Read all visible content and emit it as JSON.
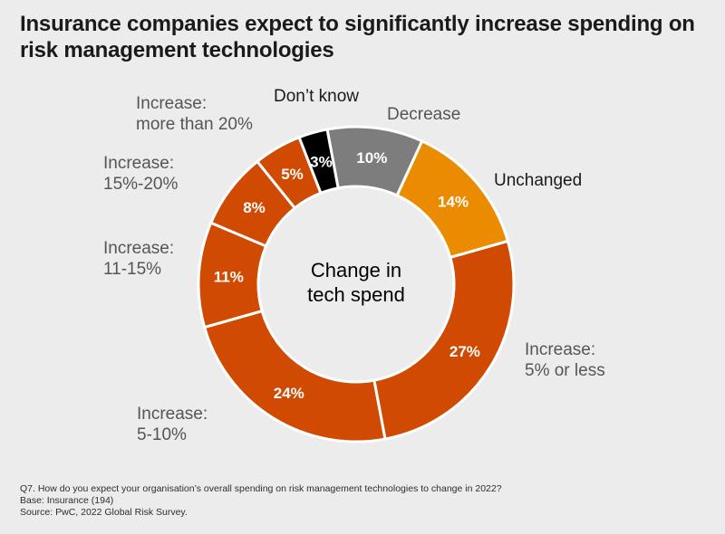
{
  "title": "Insurance companies expect to significantly increase spending on risk management technologies",
  "chart_data": {
    "type": "pie",
    "variant": "donut",
    "center_label": [
      "Change in",
      "tech spend"
    ],
    "slices": [
      {
        "name": "Decrease",
        "label_lines": [
          "Decrease"
        ],
        "value": 10,
        "display": "10%",
        "color": "#7d7d7d",
        "label_color": "#555555"
      },
      {
        "name": "Unchanged",
        "label_lines": [
          "Unchanged"
        ],
        "value": 14,
        "display": "14%",
        "color": "#eb8c00",
        "label_color": "#1a1a1a"
      },
      {
        "name": "Increase: 5% or less",
        "label_lines": [
          "Increase:",
          "5% or less"
        ],
        "value": 27,
        "display": "27%",
        "color": "#d04a02",
        "label_color": "#555555"
      },
      {
        "name": "Increase: 5-10%",
        "label_lines": [
          "Increase:",
          "5-10%"
        ],
        "value": 24,
        "display": "24%",
        "color": "#d04a02",
        "label_color": "#555555"
      },
      {
        "name": "Increase: 11-15%",
        "label_lines": [
          "Increase:",
          "11-15%"
        ],
        "value": 11,
        "display": "11%",
        "color": "#d04a02",
        "label_color": "#555555"
      },
      {
        "name": "Increase: 15%-20%",
        "label_lines": [
          "Increase:",
          "15%-20%"
        ],
        "value": 8,
        "display": "8%",
        "color": "#d04a02",
        "label_color": "#555555"
      },
      {
        "name": "Increase: more than 20%",
        "label_lines": [
          "Increase:",
          "more than 20%"
        ],
        "value": 5,
        "display": "5%",
        "color": "#d04a02",
        "label_color": "#555555"
      },
      {
        "name": "Don’t know",
        "label_lines": [
          "Don’t know"
        ],
        "value": 3,
        "display": "3%",
        "color": "#000000",
        "label_color": "#1a1a1a"
      }
    ]
  },
  "footnotes": [
    "Q7. How do you expect your organisation’s overall spending on risk management technologies to change in 2022?",
    "Base: Insurance (194)",
    "Source: PwC, 2022 Global Risk Survey."
  ]
}
